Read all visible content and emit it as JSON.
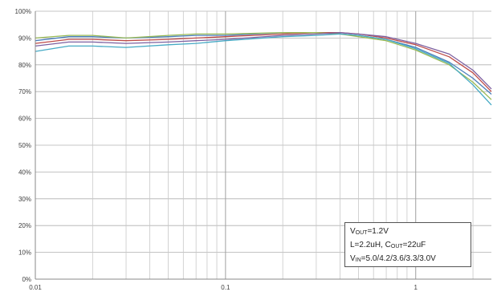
{
  "chart_data": {
    "type": "line",
    "xscale": "log",
    "xlim": [
      0.01,
      2.5
    ],
    "ylim": [
      0,
      100
    ],
    "x_ticks": [
      0.01,
      0.1,
      1
    ],
    "x_tick_labels": [
      "0.01",
      "0.1",
      "1"
    ],
    "y_ticks": [
      0,
      10,
      20,
      30,
      40,
      50,
      60,
      70,
      80,
      90,
      100
    ],
    "y_tick_labels": [
      "0%",
      "10%",
      "20%",
      "30%",
      "40%",
      "50%",
      "60%",
      "70%",
      "80%",
      "90%",
      "100%"
    ],
    "grid": true,
    "legend_position": "bottom-right",
    "annotation": {
      "line1": {
        "main": "V",
        "sub": "OUT",
        "rest": "=1.2V"
      },
      "line2": {
        "pre": "L=2.2uH, C",
        "sub": "OUT",
        "rest": "=22uF"
      },
      "line3": {
        "main": "V",
        "sub": "IN",
        "rest": "=5.0/4.2/3.6/3.3/3.0V"
      }
    },
    "series": [
      {
        "color": "#4a7ebb",
        "x": [
          0.01,
          0.015,
          0.02,
          0.03,
          0.05,
          0.07,
          0.1,
          0.2,
          0.3,
          0.4,
          0.5,
          0.7,
          1.0,
          1.5,
          2.0,
          2.5
        ],
        "y": [
          89,
          90.5,
          90.5,
          90,
          90.5,
          91,
          91,
          92,
          92,
          91.5,
          91,
          89.5,
          86.5,
          81,
          75,
          69
        ]
      },
      {
        "color": "#be4b48",
        "x": [
          0.01,
          0.015,
          0.02,
          0.03,
          0.05,
          0.07,
          0.1,
          0.2,
          0.3,
          0.4,
          0.5,
          0.7,
          1.0,
          1.5,
          2.0,
          2.5
        ],
        "y": [
          88,
          89.5,
          89.5,
          89,
          89.5,
          90,
          90.5,
          91.5,
          92,
          92,
          91.5,
          90,
          87.5,
          83,
          77,
          70
        ]
      },
      {
        "color": "#98b954",
        "x": [
          0.01,
          0.015,
          0.02,
          0.03,
          0.05,
          0.07,
          0.1,
          0.2,
          0.3,
          0.4,
          0.5,
          0.7,
          1.0,
          1.5,
          2.0,
          2.5
        ],
        "y": [
          90,
          91,
          91,
          90,
          91,
          91.5,
          91.5,
          92,
          92,
          91.5,
          90.5,
          89,
          85.5,
          80,
          73.5,
          67
        ]
      },
      {
        "color": "#7d60a0",
        "x": [
          0.01,
          0.015,
          0.02,
          0.03,
          0.05,
          0.07,
          0.1,
          0.2,
          0.3,
          0.4,
          0.5,
          0.7,
          1.0,
          1.5,
          2.0,
          2.5
        ],
        "y": [
          87,
          88.5,
          88.5,
          88,
          88.5,
          89,
          89.5,
          91,
          91.5,
          92,
          91.5,
          90.5,
          88,
          84,
          78,
          71
        ]
      },
      {
        "color": "#46aac5",
        "x": [
          0.01,
          0.015,
          0.02,
          0.03,
          0.05,
          0.07,
          0.1,
          0.2,
          0.3,
          0.4,
          0.5,
          0.7,
          1.0,
          1.5,
          2.0,
          2.5
        ],
        "y": [
          85,
          87,
          87,
          86.5,
          87.5,
          88,
          89,
          90.5,
          91,
          91.5,
          91,
          89.5,
          86,
          80.5,
          72.5,
          65
        ]
      }
    ]
  }
}
